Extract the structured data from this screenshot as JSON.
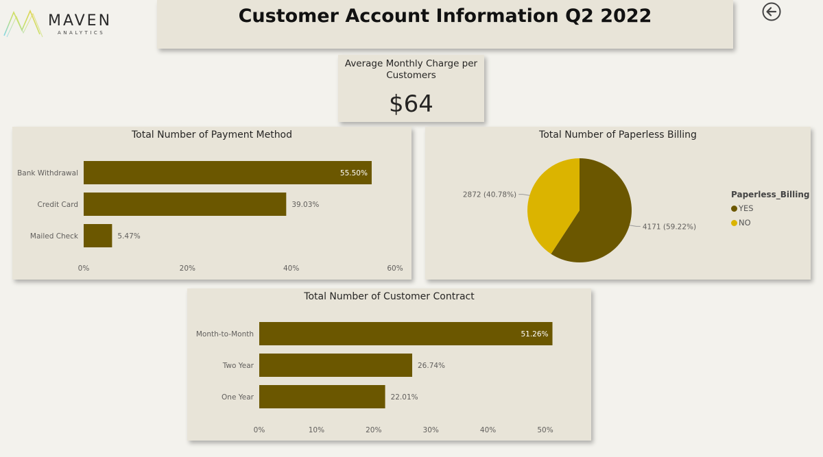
{
  "logo": {
    "word": "MAVEN",
    "sub": "ANALYTICS"
  },
  "header": {
    "title": "Customer Account Information Q2 2022"
  },
  "kpi": {
    "label": "Average Monthly Charge per Customers",
    "value": "$64"
  },
  "colors": {
    "bar": "#6b5700",
    "pie_yes": "#6b5700",
    "pie_no": "#dbb400",
    "card": "#e8e4d8",
    "background": "#f3f2ed"
  },
  "icons": {
    "back": "back-arrow-icon",
    "logo": "maven-logo-icon"
  },
  "chart_data": [
    {
      "id": "payment",
      "type": "bar",
      "orientation": "horizontal",
      "title": "Total Number of Payment Method",
      "categories": [
        "Bank Withdrawal",
        "Credit Card",
        "Mailed Check"
      ],
      "values": [
        55.5,
        39.03,
        5.47
      ],
      "data_labels": [
        "55.50%",
        "39.03%",
        "5.47%"
      ],
      "xlim": [
        0,
        60
      ],
      "ticks": [
        0,
        20,
        40,
        60
      ],
      "tick_labels": [
        "0%",
        "20%",
        "40%",
        "60%"
      ],
      "grid": false
    },
    {
      "id": "paperless",
      "type": "pie",
      "title": "Total Number of Paperless Billing",
      "legend_title": "Paperless_Billing",
      "legend_position": "right",
      "slices": [
        {
          "name": "YES",
          "value": 4171,
          "label": "4171 (59.22%)"
        },
        {
          "name": "NO",
          "value": 2872,
          "label": "2872 (40.78%)"
        }
      ]
    },
    {
      "id": "contract",
      "type": "bar",
      "orientation": "horizontal",
      "title": "Total Number of Customer Contract",
      "categories": [
        "Month-to-Month",
        "Two Year",
        "One Year"
      ],
      "values": [
        51.26,
        26.74,
        22.01
      ],
      "data_labels": [
        "51.26%",
        "26.74%",
        "22.01%"
      ],
      "xlim": [
        0,
        50
      ],
      "ticks": [
        0,
        10,
        20,
        30,
        40,
        50
      ],
      "tick_labels": [
        "0%",
        "10%",
        "20%",
        "30%",
        "40%",
        "50%"
      ],
      "grid": false
    }
  ]
}
